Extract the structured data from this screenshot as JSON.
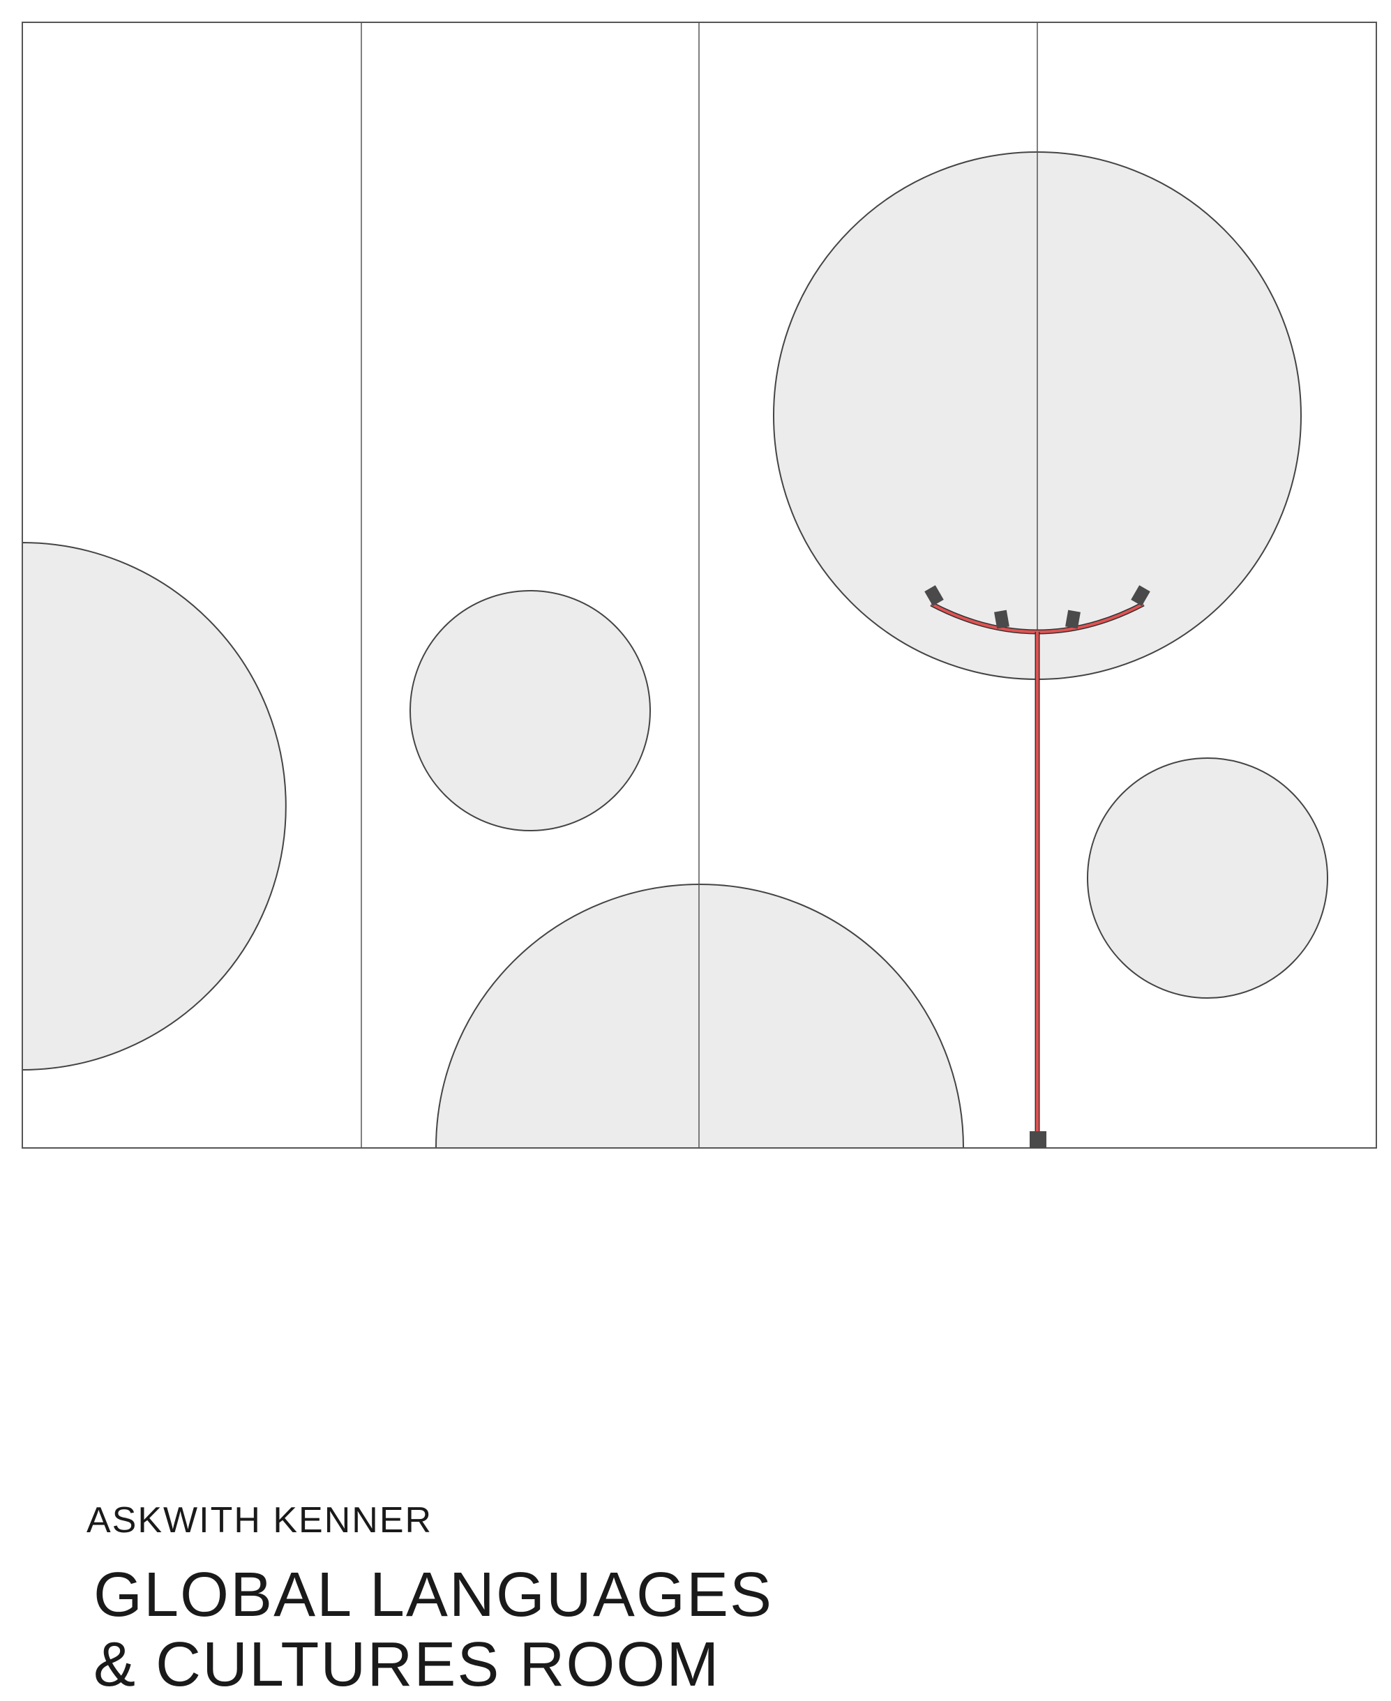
{
  "header": {
    "subtitle": "ASKWITH KENNER",
    "title_line_1": "GLOBAL LANGUAGES",
    "title_line_2": "& CULTURES ROOM"
  },
  "colors": {
    "background": "#ffffff",
    "panel_stroke": "#555555",
    "circle_fill": "#ececec",
    "circle_stroke": "#444444",
    "track_red": "#e05252",
    "track_outline": "#333333",
    "fixture": "#4a4a4a",
    "text": "#1a1a1a"
  },
  "icons": {
    "light_track": "lighting-track-icon",
    "spotlights": "spotlight-icon",
    "base_box": "junction-box-icon"
  }
}
